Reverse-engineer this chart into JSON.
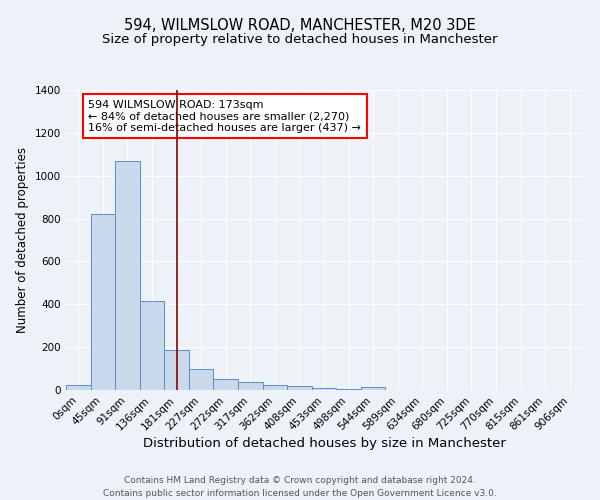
{
  "title1": "594, WILMSLOW ROAD, MANCHESTER, M20 3DE",
  "title2": "Size of property relative to detached houses in Manchester",
  "xlabel": "Distribution of detached houses by size in Manchester",
  "ylabel": "Number of detached properties",
  "bar_labels": [
    "0sqm",
    "45sqm",
    "91sqm",
    "136sqm",
    "181sqm",
    "227sqm",
    "272sqm",
    "317sqm",
    "362sqm",
    "408sqm",
    "453sqm",
    "498sqm",
    "544sqm",
    "589sqm",
    "634sqm",
    "680sqm",
    "725sqm",
    "770sqm",
    "815sqm",
    "861sqm",
    "906sqm"
  ],
  "bar_values": [
    25,
    820,
    1070,
    415,
    185,
    100,
    50,
    38,
    25,
    18,
    8,
    6,
    15,
    0,
    0,
    0,
    0,
    0,
    0,
    0,
    0
  ],
  "bar_color": "#c9d9eb",
  "bar_edge_color": "#5b8fc9",
  "vline_x": 4.0,
  "vline_color": "#8b0000",
  "annotation_text": "594 WILMSLOW ROAD: 173sqm\n← 84% of detached houses are smaller (2,270)\n16% of semi-detached houses are larger (437) →",
  "annotation_box_color": "white",
  "annotation_box_edge": "red",
  "ylim": [
    0,
    1400
  ],
  "yticks": [
    0,
    200,
    400,
    600,
    800,
    1000,
    1200,
    1400
  ],
  "bg_color": "#edf2f9",
  "plot_bg_color": "#edf2f9",
  "grid_color": "white",
  "footer1": "Contains HM Land Registry data © Crown copyright and database right 2024.",
  "footer2": "Contains public sector information licensed under the Open Government Licence v3.0.",
  "title1_fontsize": 10.5,
  "title2_fontsize": 9.5,
  "xlabel_fontsize": 9.5,
  "ylabel_fontsize": 8.5,
  "tick_fontsize": 7.5,
  "annotation_fontsize": 8,
  "footer_fontsize": 6.5
}
